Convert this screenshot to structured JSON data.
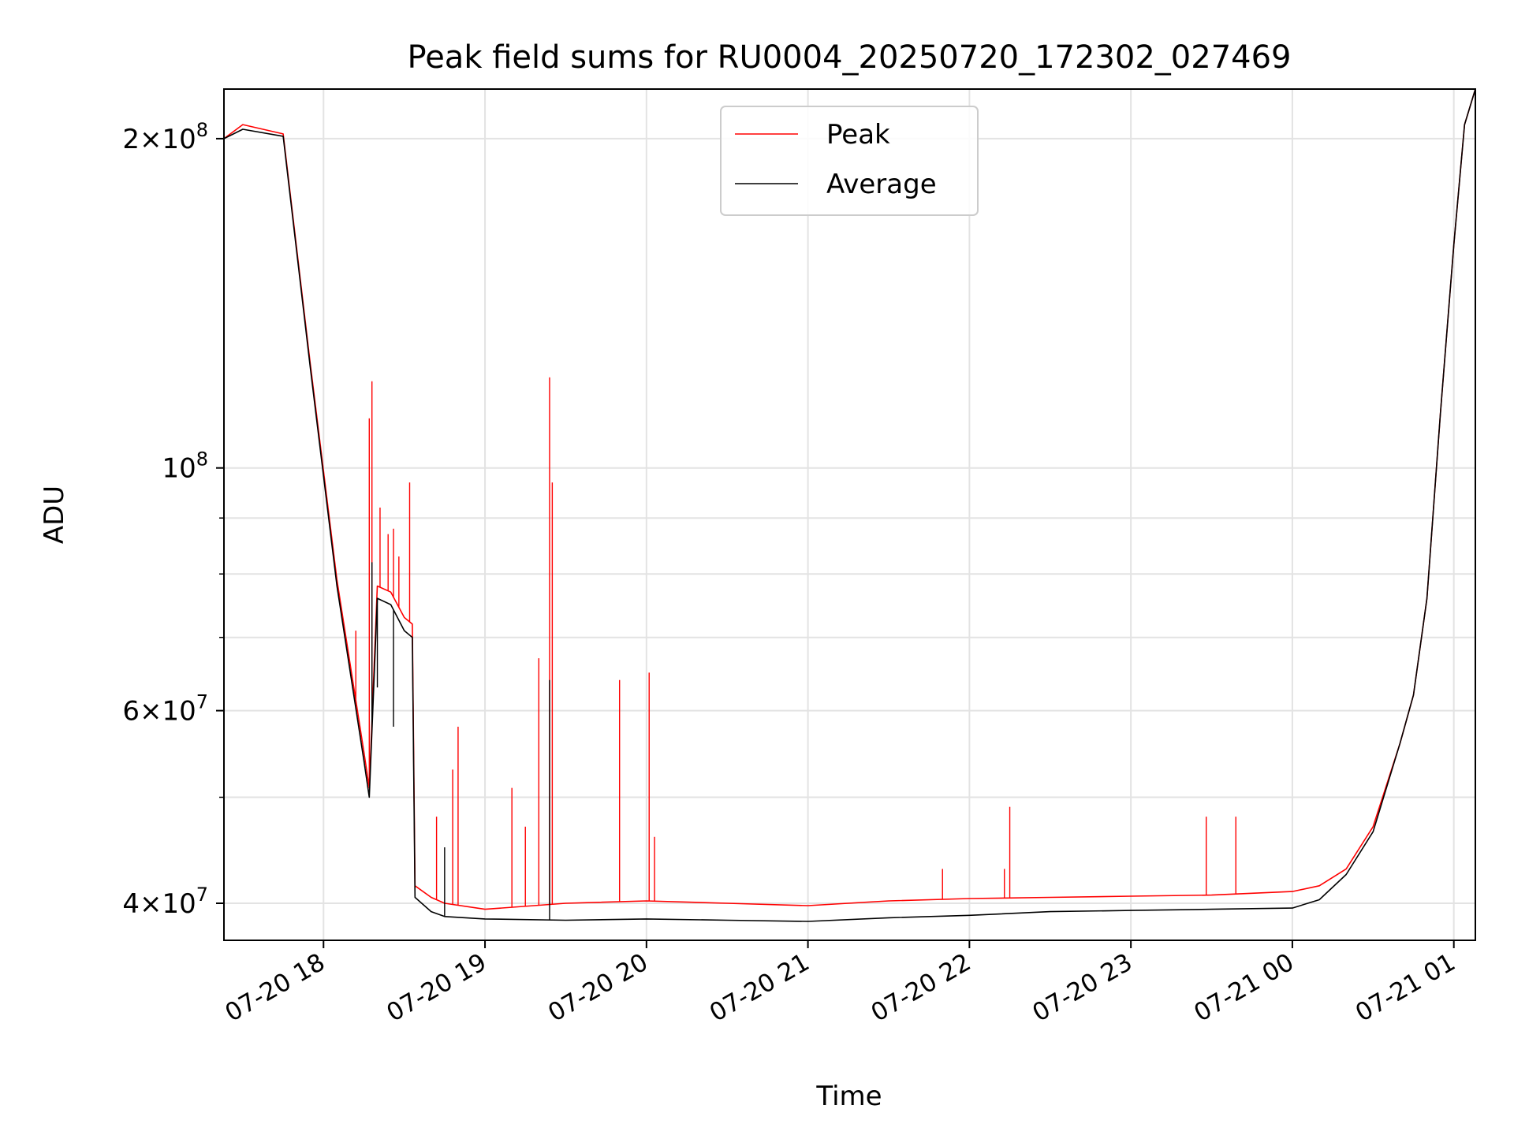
{
  "chart_data": {
    "type": "line",
    "title": "Peak field sums for RU0004_20250720_172302_027469",
    "xlabel": "Time",
    "ylabel": "ADU",
    "yscale": "log",
    "grid": true,
    "legend_position": "upper-center",
    "xlim": [
      "2025-07-20 17:23",
      "2025-07-21 01:08"
    ],
    "ylim": [
      37000000,
      222000000
    ],
    "x_ticks": [
      {
        "at": "2025-07-20 18:00",
        "label": "07-20 18"
      },
      {
        "at": "2025-07-20 19:00",
        "label": "07-20 19"
      },
      {
        "at": "2025-07-20 20:00",
        "label": "07-20 20"
      },
      {
        "at": "2025-07-20 21:00",
        "label": "07-20 21"
      },
      {
        "at": "2025-07-20 22:00",
        "label": "07-20 22"
      },
      {
        "at": "2025-07-20 23:00",
        "label": "07-20 23"
      },
      {
        "at": "2025-07-21 00:00",
        "label": "07-21 00"
      },
      {
        "at": "2025-07-21 01:00",
        "label": "07-21 01"
      }
    ],
    "y_ticks": [
      {
        "value": 40000000,
        "mantissa": "4",
        "exponent": "7"
      },
      {
        "value": 60000000,
        "mantissa": "6",
        "exponent": "7"
      },
      {
        "value": 100000000,
        "mantissa": "",
        "exponent": "8"
      },
      {
        "value": 200000000,
        "mantissa": "2",
        "exponent": "8"
      }
    ],
    "y_minor_ticks": [
      50000000,
      70000000,
      80000000,
      90000000
    ],
    "series": [
      {
        "name": "Peak",
        "color": "#ff0000",
        "x": [
          "2025-07-20 17:23",
          "2025-07-20 17:30",
          "2025-07-20 17:45",
          "2025-07-20 17:55",
          "2025-07-20 18:05",
          "2025-07-20 18:15",
          "2025-07-20 18:17",
          "2025-07-20 18:20",
          "2025-07-20 18:25",
          "2025-07-20 18:30",
          "2025-07-20 18:33",
          "2025-07-20 18:34",
          "2025-07-20 18:40",
          "2025-07-20 18:45",
          "2025-07-20 19:00",
          "2025-07-20 19:30",
          "2025-07-20 20:00",
          "2025-07-20 20:30",
          "2025-07-20 21:00",
          "2025-07-20 21:30",
          "2025-07-20 22:00",
          "2025-07-20 22:30",
          "2025-07-20 23:00",
          "2025-07-20 23:30",
          "2025-07-21 00:00",
          "2025-07-21 00:10",
          "2025-07-21 00:20",
          "2025-07-21 00:30",
          "2025-07-21 00:40",
          "2025-07-21 00:45",
          "2025-07-21 00:50",
          "2025-07-21 00:55",
          "2025-07-21 01:00",
          "2025-07-21 01:04",
          "2025-07-21 01:08"
        ],
        "y": [
          200000000,
          206000000,
          202000000,
          125000000,
          79000000,
          55000000,
          51000000,
          78000000,
          77000000,
          73000000,
          72000000,
          41500000,
          40500000,
          40000000,
          39500000,
          40000000,
          40200000,
          40000000,
          39800000,
          40200000,
          40400000,
          40500000,
          40600000,
          40700000,
          41000000,
          41500000,
          43000000,
          47000000,
          56000000,
          62000000,
          76000000,
          112000000,
          160000000,
          206000000,
          222000000
        ],
        "spikes": [
          {
            "x": "2025-07-20 18:12",
            "y": 71000000
          },
          {
            "x": "2025-07-20 18:17",
            "y": 111000000
          },
          {
            "x": "2025-07-20 18:18",
            "y": 120000000
          },
          {
            "x": "2025-07-20 18:21",
            "y": 92000000
          },
          {
            "x": "2025-07-20 18:24",
            "y": 87000000
          },
          {
            "x": "2025-07-20 18:26",
            "y": 88000000
          },
          {
            "x": "2025-07-20 18:28",
            "y": 83000000
          },
          {
            "x": "2025-07-20 18:32",
            "y": 97000000
          },
          {
            "x": "2025-07-20 18:42",
            "y": 48000000
          },
          {
            "x": "2025-07-20 18:48",
            "y": 53000000
          },
          {
            "x": "2025-07-20 18:50",
            "y": 58000000
          },
          {
            "x": "2025-07-20 19:10",
            "y": 51000000
          },
          {
            "x": "2025-07-20 19:15",
            "y": 47000000
          },
          {
            "x": "2025-07-20 19:20",
            "y": 67000000
          },
          {
            "x": "2025-07-20 19:24",
            "y": 121000000
          },
          {
            "x": "2025-07-20 19:25",
            "y": 97000000
          },
          {
            "x": "2025-07-20 19:50",
            "y": 64000000
          },
          {
            "x": "2025-07-20 20:01",
            "y": 65000000
          },
          {
            "x": "2025-07-20 20:03",
            "y": 46000000
          },
          {
            "x": "2025-07-20 21:50",
            "y": 43000000
          },
          {
            "x": "2025-07-20 22:13",
            "y": 43000000
          },
          {
            "x": "2025-07-20 22:15",
            "y": 49000000
          },
          {
            "x": "2025-07-20 23:28",
            "y": 48000000
          },
          {
            "x": "2025-07-20 23:39",
            "y": 48000000
          }
        ]
      },
      {
        "name": "Average",
        "color": "#000000",
        "x": [
          "2025-07-20 17:23",
          "2025-07-20 17:30",
          "2025-07-20 17:45",
          "2025-07-20 17:55",
          "2025-07-20 18:05",
          "2025-07-20 18:15",
          "2025-07-20 18:17",
          "2025-07-20 18:20",
          "2025-07-20 18:25",
          "2025-07-20 18:30",
          "2025-07-20 18:33",
          "2025-07-20 18:34",
          "2025-07-20 18:40",
          "2025-07-20 18:45",
          "2025-07-20 19:00",
          "2025-07-20 19:30",
          "2025-07-20 20:00",
          "2025-07-20 20:30",
          "2025-07-20 21:00",
          "2025-07-20 21:30",
          "2025-07-20 22:00",
          "2025-07-20 22:30",
          "2025-07-20 23:00",
          "2025-07-20 23:30",
          "2025-07-21 00:00",
          "2025-07-21 00:10",
          "2025-07-21 00:20",
          "2025-07-21 00:30",
          "2025-07-21 00:40",
          "2025-07-21 00:45",
          "2025-07-21 00:50",
          "2025-07-21 00:55",
          "2025-07-21 01:00",
          "2025-07-21 01:04",
          "2025-07-21 01:08"
        ],
        "y": [
          200000000,
          204000000,
          201000000,
          124000000,
          78000000,
          54000000,
          50000000,
          76000000,
          75000000,
          71000000,
          70000000,
          40500000,
          39300000,
          38900000,
          38700000,
          38600000,
          38700000,
          38600000,
          38500000,
          38800000,
          39000000,
          39300000,
          39400000,
          39500000,
          39600000,
          40300000,
          42500000,
          46500000,
          56000000,
          62000000,
          76000000,
          112000000,
          160000000,
          206000000,
          222000000
        ],
        "spikes": [
          {
            "x": "2025-07-20 18:18",
            "y": 82000000
          },
          {
            "x": "2025-07-20 18:20",
            "y": 63000000
          },
          {
            "x": "2025-07-20 18:26",
            "y": 58000000
          },
          {
            "x": "2025-07-20 18:45",
            "y": 45000000
          },
          {
            "x": "2025-07-20 19:24",
            "y": 64000000
          }
        ]
      }
    ]
  }
}
